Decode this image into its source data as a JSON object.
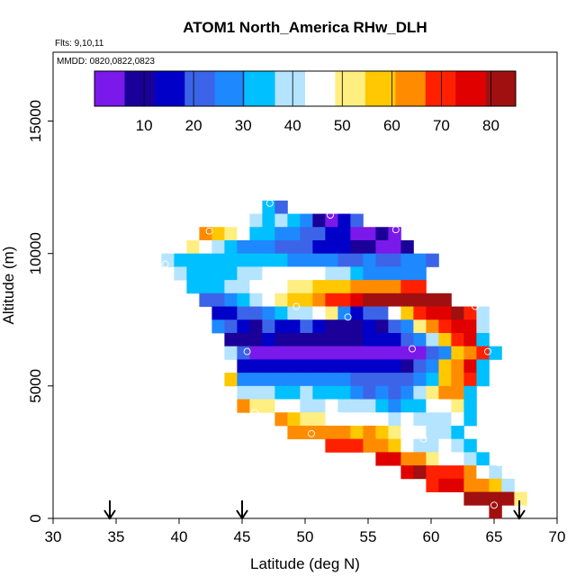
{
  "chart_data": {
    "type": "heatmap",
    "title": "ATOM1 North_America RHw_DLH",
    "flights_label": "Flts: 9,10,11",
    "dates_label": "MMDD: 0820,0822,0823",
    "xlabel": "Latitude (deg N)",
    "ylabel": "Altitude (m)",
    "xlim": [
      30,
      70
    ],
    "ylim": [
      0,
      17600
    ],
    "xticks": [
      "30",
      "35",
      "40",
      "45",
      "50",
      "55",
      "60",
      "65",
      "70"
    ],
    "yticks": [
      "0",
      "5000",
      "10000",
      "15000"
    ],
    "colorbar": {
      "ticks": [
        "10",
        "20",
        "30",
        "40",
        "50",
        "60",
        "70",
        "80"
      ],
      "range": [
        0,
        85
      ],
      "colors": [
        "#7a19ea",
        "#1a0098",
        "#0000c8",
        "#3c64e8",
        "#1e88ff",
        "#00c0ff",
        "#b4e4ff",
        "#ffffff",
        "#ffee80",
        "#ffc800",
        "#ff8c00",
        "#ff2000",
        "#e00000",
        "#a01010"
      ]
    },
    "flight_markers_lat": [
      34.5,
      45,
      67
    ],
    "grid": {
      "lat_start": 38.0,
      "lat_step": 1.0,
      "alt_top": 12000,
      "alt_step": 500,
      "rows": [
        {
          "s": 46.6,
          "v": [
            36,
            22
          ]
        },
        {
          "s": 45.6,
          "v": [
            42,
            33,
            38,
            35,
            30,
            8,
            4,
            16,
            24
          ]
        },
        {
          "s": 41.6,
          "v": [
            62,
            58,
            52,
            44,
            36,
            33,
            30,
            25,
            22,
            20,
            15,
            15,
            6,
            6,
            8,
            4
          ]
        },
        {
          "s": 40.6,
          "v": [
            52,
            44,
            40,
            36,
            30,
            28,
            26,
            24,
            22,
            20,
            18,
            15,
            15,
            12,
            8,
            6,
            6,
            8
          ]
        },
        {
          "s": 38.6,
          "v": [
            38,
            36,
            34,
            33,
            33,
            32,
            34,
            34,
            34,
            32,
            30,
            28,
            28,
            26,
            24,
            24,
            26,
            22,
            24,
            26,
            28,
            22
          ]
        },
        {
          "s": 39.6,
          "v": [
            38,
            36,
            34,
            33,
            36,
            38,
            40,
            44,
            46,
            46,
            46,
            44,
            40,
            38,
            34,
            30,
            30,
            28,
            28,
            28
          ]
        },
        {
          "s": 40.6,
          "v": [
            36,
            33,
            36,
            38,
            40,
            44,
            46,
            48,
            52,
            54,
            56,
            58,
            60,
            64,
            64,
            66,
            66,
            70,
            70
          ]
        },
        {
          "s": 41.6,
          "v": [
            20,
            24,
            30,
            36,
            40,
            48,
            52,
            56,
            60,
            64,
            68,
            72,
            76,
            80,
            82,
            84,
            82,
            84,
            84,
            84
          ]
        },
        {
          "s": 42.6,
          "v": [
            18,
            16,
            22,
            20,
            26,
            33,
            38,
            42,
            46,
            50,
            26,
            18,
            20,
            24,
            48,
            58,
            68,
            74,
            78,
            82,
            72,
            38
          ]
        },
        {
          "s": 42.6,
          "v": [
            26,
            24,
            14,
            12,
            22,
            18,
            16,
            20,
            14,
            12,
            10,
            12,
            16,
            10,
            20,
            26,
            52,
            62,
            70,
            78,
            76,
            38
          ]
        },
        {
          "s": 43.6,
          "v": [
            12,
            10,
            8,
            14,
            10,
            10,
            8,
            8,
            10,
            8,
            10,
            14,
            16,
            18,
            22,
            28,
            38,
            58,
            68,
            74,
            36
          ]
        },
        {
          "s": 43.6,
          "v": [
            40,
            20,
            5,
            5,
            5,
            5,
            5,
            5,
            5,
            5,
            5,
            5,
            5,
            5,
            5,
            5,
            20,
            30,
            56,
            64,
            72,
            36
          ]
        },
        {
          "s": 44.6,
          "v": [
            14,
            14,
            14,
            14,
            14,
            14,
            14,
            14,
            14,
            14,
            14,
            14,
            14,
            12,
            24,
            30,
            58,
            66,
            74,
            36
          ]
        },
        {
          "s": 43.6,
          "v": [
            58,
            26,
            26,
            26,
            26,
            26,
            26,
            26,
            26,
            28,
            24,
            22,
            24,
            24,
            20,
            30,
            34,
            56,
            62,
            68,
            34
          ]
        },
        {
          "s": 44.6,
          "v": [
            40,
            40,
            38,
            36,
            36,
            40,
            36,
            34,
            36,
            28,
            24,
            26,
            20,
            30,
            38,
            52,
            64,
            64,
            34
          ]
        },
        {
          "s": 44.6,
          "v": [
            62,
            54,
            50,
            48,
            44,
            40,
            40,
            44,
            42,
            38,
            38,
            36,
            30,
            36,
            32,
            44,
            48,
            54,
            34
          ]
        },
        {
          "s": 47.6,
          "v": [
            66,
            60,
            54,
            50,
            48,
            46,
            48,
            46,
            48,
            42,
            44,
            42,
            40,
            40,
            46,
            34
          ]
        },
        {
          "s": 48.6,
          "v": [
            66,
            62,
            64,
            66,
            64,
            58,
            62,
            58,
            54,
            48,
            44,
            40,
            40,
            32
          ]
        },
        {
          "s": 51.6,
          "v": [
            68,
            72,
            72,
            66,
            64,
            56,
            48,
            40,
            40,
            48,
            38,
            34
          ]
        },
        {
          "s": 55.6,
          "v": [
            76,
            74,
            66,
            62,
            52,
            48,
            44,
            40,
            32
          ]
        },
        {
          "s": 57.6,
          "v": [
            78,
            80,
            72,
            70,
            68,
            62,
            48,
            40
          ]
        },
        {
          "s": 59.6,
          "v": [
            72,
            76,
            74,
            66,
            62,
            60,
            40
          ]
        },
        {
          "s": 62.6,
          "v": [
            80,
            82,
            84,
            80,
            50
          ]
        },
        {
          "s": 64.6,
          "v": [
            84
          ]
        }
      ]
    },
    "open_circles": [
      {
        "lat": 47.2,
        "alt": 11900
      },
      {
        "lat": 52.0,
        "alt": 11450
      },
      {
        "lat": 57.2,
        "alt": 10900
      },
      {
        "lat": 42.4,
        "alt": 10850
      },
      {
        "lat": 38.9,
        "alt": 9600
      },
      {
        "lat": 49.3,
        "alt": 8000
      },
      {
        "lat": 53.4,
        "alt": 7600
      },
      {
        "lat": 63.5,
        "alt": 8000
      },
      {
        "lat": 65.8,
        "alt": 8000
      },
      {
        "lat": 45.4,
        "alt": 6300
      },
      {
        "lat": 58.5,
        "alt": 6400
      },
      {
        "lat": 64.5,
        "alt": 6300
      },
      {
        "lat": 46.0,
        "alt": 4000
      },
      {
        "lat": 50.5,
        "alt": 3200
      },
      {
        "lat": 59.4,
        "alt": 3000
      },
      {
        "lat": 65.4,
        "alt": 2100
      },
      {
        "lat": 65.0,
        "alt": 500
      }
    ]
  }
}
